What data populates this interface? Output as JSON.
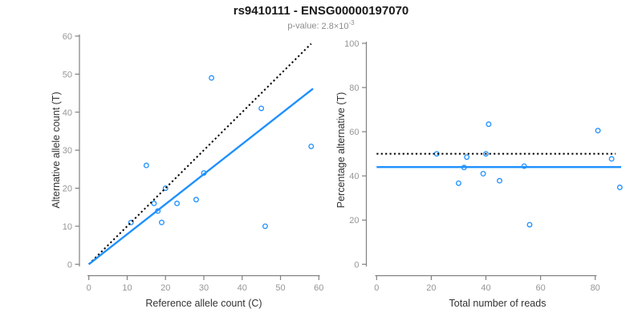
{
  "figure": {
    "title": "rs9410111 - ENSG00000197070",
    "subtitle": {
      "label": "p-value:",
      "value": "2.8×10",
      "exponent": "-3"
    },
    "colors": {
      "points": "#1E90FF",
      "fit_line": "#1E90FF",
      "reference_line": "#000000",
      "axis": "#808080",
      "tick_labels": "#969696",
      "axis_titles": "#333333",
      "title": "#1a1a1a",
      "subtitle": "#8c8c8c"
    }
  },
  "chart_data": [
    {
      "type": "scatter",
      "panel": "left",
      "xlabel": "Reference allele count (C)",
      "ylabel": "Alternative allele count (T)",
      "xlim": [
        0,
        60
      ],
      "ylim": [
        0,
        60
      ],
      "xticks": [
        0,
        10,
        20,
        30,
        40,
        50,
        60
      ],
      "yticks": [
        0,
        10,
        20,
        30,
        40,
        50,
        60
      ],
      "grid": false,
      "points": [
        [
          11,
          11
        ],
        [
          15,
          26
        ],
        [
          17,
          16
        ],
        [
          18,
          14
        ],
        [
          19,
          11
        ],
        [
          20,
          20
        ],
        [
          23,
          16
        ],
        [
          28,
          17
        ],
        [
          30,
          24
        ],
        [
          32,
          49
        ],
        [
          45,
          41
        ],
        [
          46,
          10
        ],
        [
          58,
          31
        ]
      ],
      "lines": [
        {
          "name": "identity-line",
          "style": "dotted",
          "color": "black",
          "x1": 0,
          "y1": 0,
          "x2": 58,
          "y2": 58
        },
        {
          "name": "fit-line",
          "style": "solid",
          "color": "blue",
          "x1": 0,
          "y1": 0,
          "x2": 58.5,
          "y2": 46.2
        }
      ]
    },
    {
      "type": "scatter",
      "panel": "right",
      "xlabel": "Total number of reads",
      "ylabel": "Percentage alternative (T)",
      "xlim": [
        0,
        90
      ],
      "ylim": [
        0,
        100
      ],
      "xticks": [
        0,
        20,
        40,
        60,
        80
      ],
      "yticks": [
        0,
        20,
        40,
        60,
        80,
        100
      ],
      "grid": false,
      "points": [
        [
          22,
          50
        ],
        [
          30,
          36.7
        ],
        [
          32,
          43.8
        ],
        [
          33,
          48.5
        ],
        [
          39,
          41
        ],
        [
          40,
          50
        ],
        [
          41,
          63.4
        ],
        [
          45,
          37.8
        ],
        [
          54,
          44.4
        ],
        [
          56,
          17.9
        ],
        [
          81,
          60.5
        ],
        [
          86,
          47.7
        ],
        [
          89,
          34.8
        ]
      ],
      "lines": [
        {
          "name": "expected-50pct-line",
          "style": "dotted",
          "color": "black",
          "x1": 0,
          "y1": 50,
          "x2": 87.5,
          "y2": 50
        },
        {
          "name": "fit-line",
          "style": "solid",
          "color": "blue",
          "x1": 0,
          "y1": 44,
          "x2": 89.5,
          "y2": 44
        }
      ]
    }
  ]
}
